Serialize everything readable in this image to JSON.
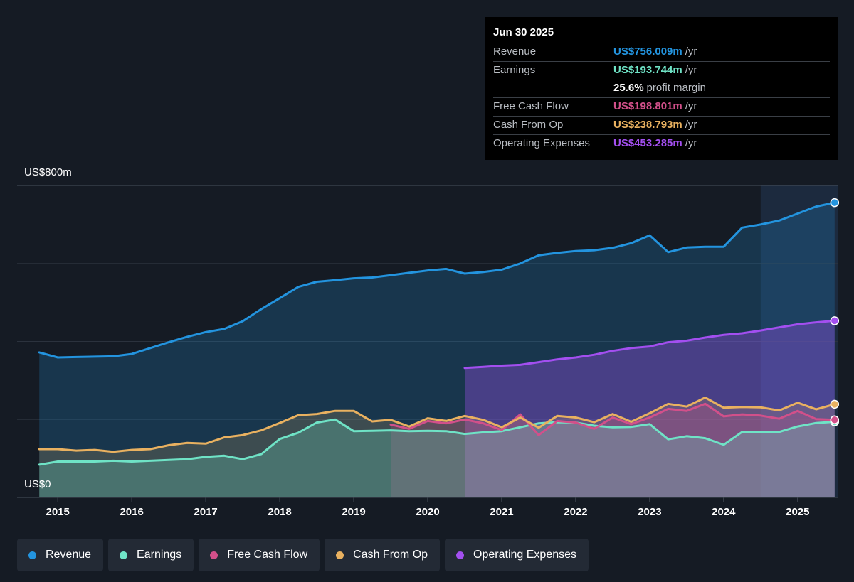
{
  "tooltip": {
    "date": "Jun 30 2025",
    "rows": [
      {
        "label": "Revenue",
        "value": "US$756.009m",
        "unit": "/yr",
        "color": "#2394df"
      },
      {
        "label": "Earnings",
        "value": "US$193.744m",
        "unit": "/yr",
        "color": "#6fe3c6"
      },
      {
        "label": "",
        "value": "25.6%",
        "unit": "profit margin",
        "color": "#ffffff"
      },
      {
        "label": "Free Cash Flow",
        "value": "US$198.801m",
        "unit": "/yr",
        "color": "#d2508a"
      },
      {
        "label": "Cash From Op",
        "value": "US$238.793m",
        "unit": "/yr",
        "color": "#e9b160"
      },
      {
        "label": "Operating Expenses",
        "value": "US$453.285m",
        "unit": "/yr",
        "color": "#a34ff0"
      }
    ]
  },
  "legend": [
    {
      "label": "Revenue",
      "color": "#2394df"
    },
    {
      "label": "Earnings",
      "color": "#6fe3c6"
    },
    {
      "label": "Free Cash Flow",
      "color": "#d2508a"
    },
    {
      "label": "Cash From Op",
      "color": "#e9b160"
    },
    {
      "label": "Operating Expenses",
      "color": "#a34ff0"
    }
  ],
  "chart_data": {
    "type": "area",
    "title": "",
    "xlabel": "",
    "ylabel": "",
    "y_top_label": "US$800m",
    "y_bottom_label": "US$0",
    "ylim": [
      0,
      800
    ],
    "xlim": [
      2014.45,
      2025.55
    ],
    "x_ticks": [
      2015,
      2016,
      2017,
      2018,
      2019,
      2020,
      2021,
      2022,
      2023,
      2024,
      2025
    ],
    "grid": true,
    "forecast_shade_from": 2024.5,
    "series": [
      {
        "name": "Revenue",
        "color": "#2394df",
        "points": [
          [
            2014.75,
            372
          ],
          [
            2015.0,
            359
          ],
          [
            2015.25,
            360
          ],
          [
            2015.5,
            361
          ],
          [
            2015.75,
            362
          ],
          [
            2016.0,
            368
          ],
          [
            2016.25,
            383
          ],
          [
            2016.5,
            398
          ],
          [
            2016.75,
            412
          ],
          [
            2017.0,
            424
          ],
          [
            2017.25,
            432
          ],
          [
            2017.5,
            452
          ],
          [
            2017.75,
            483
          ],
          [
            2018.0,
            511
          ],
          [
            2018.25,
            540
          ],
          [
            2018.5,
            553
          ],
          [
            2018.75,
            557
          ],
          [
            2019.0,
            562
          ],
          [
            2019.25,
            564
          ],
          [
            2019.5,
            570
          ],
          [
            2019.75,
            576
          ],
          [
            2020.0,
            582
          ],
          [
            2020.25,
            586
          ],
          [
            2020.5,
            574
          ],
          [
            2020.75,
            578
          ],
          [
            2021.0,
            584
          ],
          [
            2021.25,
            600
          ],
          [
            2021.5,
            621
          ],
          [
            2021.75,
            627
          ],
          [
            2022.0,
            632
          ],
          [
            2022.25,
            634
          ],
          [
            2022.5,
            640
          ],
          [
            2022.75,
            652
          ],
          [
            2023.0,
            672
          ],
          [
            2023.25,
            629
          ],
          [
            2023.5,
            641
          ],
          [
            2023.75,
            643
          ],
          [
            2024.0,
            643
          ],
          [
            2024.25,
            692
          ],
          [
            2024.5,
            700
          ],
          [
            2024.75,
            710
          ],
          [
            2025.0,
            728
          ],
          [
            2025.25,
            746
          ],
          [
            2025.5,
            756
          ]
        ]
      },
      {
        "name": "Earnings",
        "color": "#6fe3c6",
        "points": [
          [
            2014.75,
            84
          ],
          [
            2015.0,
            92
          ],
          [
            2015.25,
            92
          ],
          [
            2015.5,
            92
          ],
          [
            2015.75,
            94
          ],
          [
            2016.0,
            92
          ],
          [
            2016.25,
            94
          ],
          [
            2016.5,
            96
          ],
          [
            2016.75,
            98
          ],
          [
            2017.0,
            104
          ],
          [
            2017.25,
            107
          ],
          [
            2017.5,
            98
          ],
          [
            2017.75,
            111
          ],
          [
            2018.0,
            150
          ],
          [
            2018.25,
            166
          ],
          [
            2018.5,
            192
          ],
          [
            2018.75,
            200
          ],
          [
            2019.0,
            170
          ],
          [
            2019.25,
            171
          ],
          [
            2019.5,
            172
          ],
          [
            2019.75,
            170
          ],
          [
            2020.0,
            171
          ],
          [
            2020.25,
            170
          ],
          [
            2020.5,
            163
          ],
          [
            2020.75,
            167
          ],
          [
            2021.0,
            170
          ],
          [
            2021.25,
            180
          ],
          [
            2021.5,
            190
          ],
          [
            2021.75,
            193
          ],
          [
            2022.0,
            192
          ],
          [
            2022.25,
            184
          ],
          [
            2022.5,
            180
          ],
          [
            2022.75,
            181
          ],
          [
            2023.0,
            188
          ],
          [
            2023.25,
            149
          ],
          [
            2023.5,
            157
          ],
          [
            2023.75,
            152
          ],
          [
            2024.0,
            135
          ],
          [
            2024.25,
            168
          ],
          [
            2024.5,
            168
          ],
          [
            2024.75,
            168
          ],
          [
            2025.0,
            182
          ],
          [
            2025.25,
            191
          ],
          [
            2025.5,
            194
          ]
        ]
      },
      {
        "name": "Free Cash Flow",
        "color": "#d2508a",
        "points": [
          [
            2019.5,
            187
          ],
          [
            2019.75,
            176
          ],
          [
            2020.0,
            196
          ],
          [
            2020.25,
            190
          ],
          [
            2020.5,
            200
          ],
          [
            2020.75,
            190
          ],
          [
            2021.0,
            173
          ],
          [
            2021.25,
            213
          ],
          [
            2021.5,
            160
          ],
          [
            2021.75,
            196
          ],
          [
            2022.0,
            192
          ],
          [
            2022.25,
            176
          ],
          [
            2022.5,
            205
          ],
          [
            2022.75,
            188
          ],
          [
            2023.0,
            205
          ],
          [
            2023.25,
            227
          ],
          [
            2023.5,
            222
          ],
          [
            2023.75,
            240
          ],
          [
            2024.0,
            208
          ],
          [
            2024.25,
            213
          ],
          [
            2024.5,
            210
          ],
          [
            2024.75,
            202
          ],
          [
            2025.0,
            222
          ],
          [
            2025.25,
            201
          ],
          [
            2025.5,
            199
          ]
        ]
      },
      {
        "name": "Cash From Op",
        "color": "#e9b160",
        "points": [
          [
            2014.75,
            124
          ],
          [
            2015.0,
            124
          ],
          [
            2015.25,
            120
          ],
          [
            2015.5,
            122
          ],
          [
            2015.75,
            117
          ],
          [
            2016.0,
            122
          ],
          [
            2016.25,
            124
          ],
          [
            2016.5,
            134
          ],
          [
            2016.75,
            140
          ],
          [
            2017.0,
            138
          ],
          [
            2017.25,
            154
          ],
          [
            2017.5,
            160
          ],
          [
            2017.75,
            172
          ],
          [
            2018.0,
            191
          ],
          [
            2018.25,
            211
          ],
          [
            2018.5,
            214
          ],
          [
            2018.75,
            222
          ],
          [
            2019.0,
            222
          ],
          [
            2019.25,
            195
          ],
          [
            2019.5,
            199
          ],
          [
            2019.75,
            182
          ],
          [
            2020.0,
            203
          ],
          [
            2020.25,
            196
          ],
          [
            2020.5,
            209
          ],
          [
            2020.75,
            199
          ],
          [
            2021.0,
            180
          ],
          [
            2021.25,
            205
          ],
          [
            2021.5,
            179
          ],
          [
            2021.75,
            209
          ],
          [
            2022.0,
            205
          ],
          [
            2022.25,
            193
          ],
          [
            2022.5,
            214
          ],
          [
            2022.75,
            194
          ],
          [
            2023.0,
            216
          ],
          [
            2023.25,
            240
          ],
          [
            2023.5,
            233
          ],
          [
            2023.75,
            256
          ],
          [
            2024.0,
            230
          ],
          [
            2024.25,
            232
          ],
          [
            2024.5,
            231
          ],
          [
            2024.75,
            223
          ],
          [
            2025.0,
            243
          ],
          [
            2025.25,
            226
          ],
          [
            2025.5,
            239
          ]
        ]
      },
      {
        "name": "Operating Expenses",
        "color": "#a34ff0",
        "points": [
          [
            2020.5,
            332
          ],
          [
            2020.75,
            335
          ],
          [
            2021.0,
            338
          ],
          [
            2021.25,
            340
          ],
          [
            2021.5,
            347
          ],
          [
            2021.75,
            354
          ],
          [
            2022.0,
            359
          ],
          [
            2022.25,
            366
          ],
          [
            2022.5,
            376
          ],
          [
            2022.75,
            383
          ],
          [
            2023.0,
            387
          ],
          [
            2023.25,
            398
          ],
          [
            2023.5,
            402
          ],
          [
            2023.75,
            410
          ],
          [
            2024.0,
            417
          ],
          [
            2024.25,
            421
          ],
          [
            2024.5,
            428
          ],
          [
            2024.75,
            436
          ],
          [
            2025.0,
            444
          ],
          [
            2025.25,
            449
          ],
          [
            2025.5,
            453
          ]
        ]
      }
    ]
  }
}
